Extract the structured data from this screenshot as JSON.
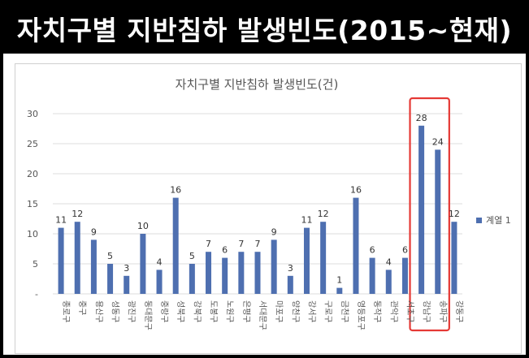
{
  "banner": {
    "title": "자치구별 지반침하 발생빈도(2015~현재)"
  },
  "chart_data": {
    "type": "bar",
    "title": "자치구별 지반침하 발생빈도(건)",
    "xlabel": "",
    "ylabel": "",
    "ylim": [
      0,
      30
    ],
    "yticks": [
      0,
      5,
      10,
      15,
      20,
      25,
      30
    ],
    "grid": true,
    "legend": "right",
    "categories": [
      "종로구",
      "중구",
      "용산구",
      "성동구",
      "광진구",
      "동대문구",
      "중랑구",
      "성북구",
      "강북구",
      "도봉구",
      "노원구",
      "은평구",
      "서대문구",
      "마포구",
      "양천구",
      "강서구",
      "구로구",
      "금천구",
      "영등포구",
      "동작구",
      "관악구",
      "서초구",
      "강남구",
      "송파구",
      "강동구"
    ],
    "series": [
      {
        "name": "계열 1",
        "values": [
          11,
          12,
          9,
          5,
          3,
          10,
          4,
          16,
          5,
          7,
          6,
          7,
          7,
          9,
          3,
          11,
          12,
          1,
          16,
          6,
          4,
          6,
          28,
          24,
          12
        ]
      }
    ],
    "highlighted": [
      "강남구",
      "송파구"
    ],
    "colors": {
      "bar": "#4e6fb0",
      "highlight_box": "#e53935",
      "grid": "#dcdcdc"
    }
  }
}
